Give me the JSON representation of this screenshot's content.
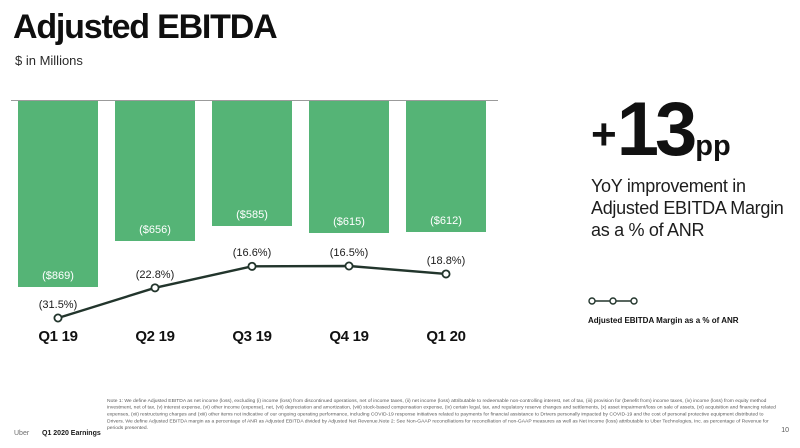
{
  "slide": {
    "title": "Adjusted EBITDA",
    "subtitle": "$ in Millions",
    "page_number": "10",
    "footer_brand": "Uber",
    "footer_label": "Q1 2020 Earnings",
    "footnote": "Note 1: We define Adjusted EBITDA as net income (loss), excluding (i) income (loss) from discontinued operations, net of income taxes, (ii) net income (loss) attributable to redeemable non-controlling interest, net of tax, (iii) provision for (benefit from) income taxes, (iv) income (loss) from equity method investment, net of tax, (v) interest expense, (vi) other income (expense), net, (vii) depreciation and amortization, (viii) stock-based compensation expense, (ix) certain legal, tax, and regulatory reserve changes and settlements, (x) asset impairment/loss on sale of assets, (xi) acquisition and financing related expenses, (xii) restructuring charges and (xiii) other items not indicative of our ongoing operating performance, including COVID-19 response initiatives related to payments for financial assistance to Drivers personally impacted by COVID-19 and the cost of personal protective equipment distributed to Drivers. We define Adjusted EBITDA margin as a percentage of ANR as Adjusted EBITDA divided by Adjusted Net Revenue.Note 2: See Non-GAAP reconciliations for reconciliation of non-GAAP measures as well as Net income (loss) attributable to Uber Technologies, Inc. as percentage of Revenue for periods presented."
  },
  "highlight": {
    "plus": "+",
    "value": "13",
    "unit": "pp",
    "description": "YoY improvement in Adjusted EBITDA Margin as a % of ANR"
  },
  "legend": {
    "label": "Adjusted EBITDA Margin as a % of ANR"
  },
  "chart_data": {
    "type": "bar",
    "title": "Adjusted EBITDA",
    "xlabel": "",
    "ylabel": "$ in Millions",
    "categories": [
      "Q1 19",
      "Q2 19",
      "Q3 19",
      "Q4 19",
      "Q1 20"
    ],
    "series": [
      {
        "name": "Adjusted EBITDA ($M)",
        "type": "bar",
        "values": [
          -869,
          -656,
          -585,
          -615,
          -612
        ],
        "labels": [
          "($869)",
          "($656)",
          "($585)",
          "($615)",
          "($612)"
        ]
      },
      {
        "name": "Adjusted EBITDA Margin as a % of ANR",
        "type": "line",
        "values": [
          -31.5,
          -22.8,
          -16.6,
          -16.5,
          -18.8
        ],
        "labels": [
          "(31.5%)",
          "(22.8%)",
          "(16.6%)",
          "(16.5%)",
          "(18.8%)"
        ]
      }
    ],
    "legend_position": "right",
    "grid": false,
    "colors": {
      "bar": "#55b476",
      "line": "#22352c",
      "baseline": "#9b9b9b",
      "bar_label": "#ffffff"
    }
  }
}
